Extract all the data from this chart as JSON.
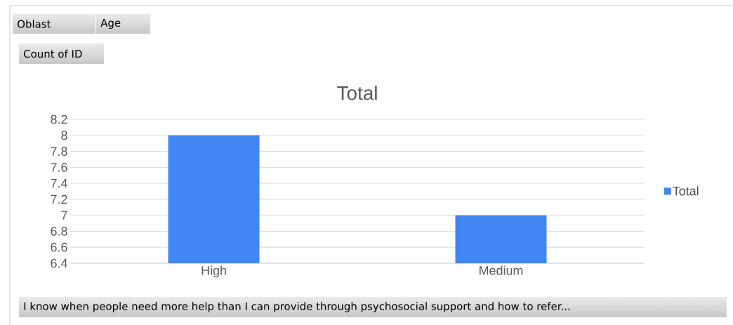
{
  "chart_data": {
    "type": "bar",
    "title": "Total",
    "categories": [
      "High",
      "Medium"
    ],
    "series": [
      {
        "name": "Total",
        "color": "#4285f4",
        "values": [
          8,
          7
        ]
      }
    ],
    "ylim": [
      6.4,
      8.2
    ],
    "yticks": [
      6.4,
      6.6,
      6.8,
      7,
      7.2,
      7.4,
      7.6,
      7.8,
      8,
      8.2
    ],
    "grid": "y",
    "legend": "right",
    "annotations": [
      "Oblast",
      "Age",
      "Count of ID",
      "I know when people need more help than I can provide through psychosocial support and how to refer..."
    ]
  }
}
